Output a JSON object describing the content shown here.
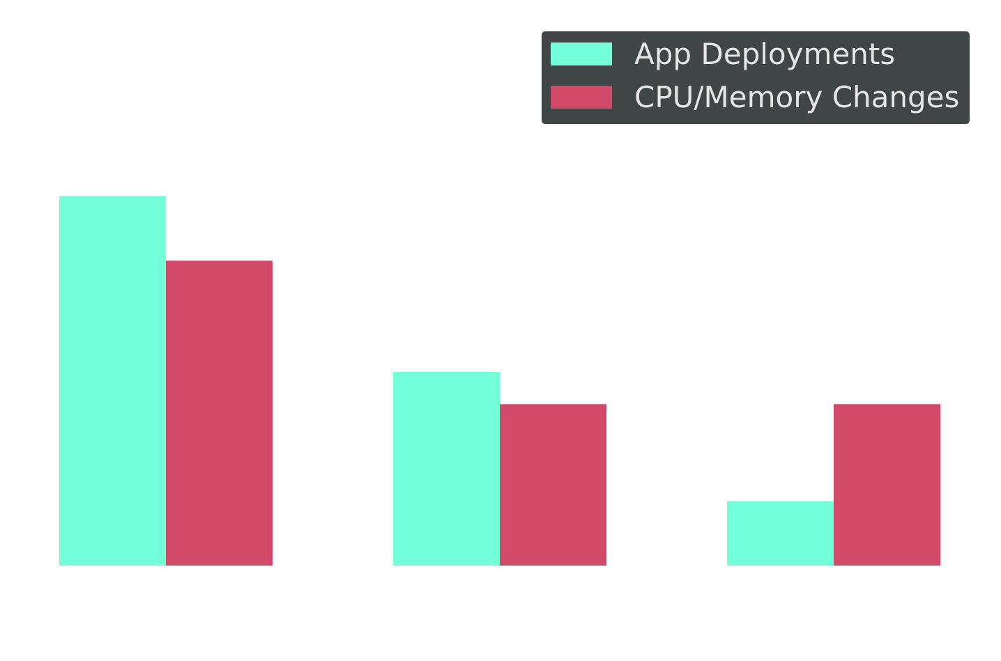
{
  "chart_data": {
    "type": "bar",
    "title": "",
    "xlabel": "",
    "ylabel": "",
    "categories": [
      "",
      "",
      ""
    ],
    "ylim": [
      0,
      12
    ],
    "grid": false,
    "legend": {
      "placement": "top-right",
      "background": "#404546"
    },
    "series": [
      {
        "name": "App Deployments",
        "color": "#73ffd7",
        "values": [
          10.3,
          5.4,
          1.8
        ]
      },
      {
        "name": "CPU/Memory Changes",
        "color": "#d24a69",
        "values": [
          8.5,
          4.5,
          4.5
        ]
      }
    ]
  }
}
